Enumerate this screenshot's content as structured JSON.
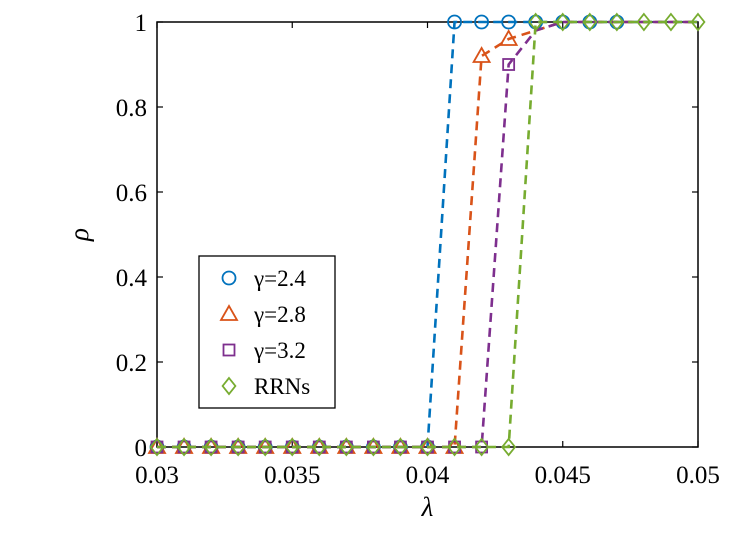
{
  "chart_data": {
    "type": "line",
    "xlabel": "λ",
    "ylabel": "ρ",
    "xlim": [
      0.03,
      0.05
    ],
    "ylim": [
      0,
      1
    ],
    "xticks": [
      "0.03",
      "0.035",
      "0.04",
      "0.045",
      "0.05"
    ],
    "yticks": [
      "0",
      "0.2",
      "0.4",
      "0.6",
      "0.8",
      "1"
    ],
    "grid": false,
    "legend_position": "lower-left",
    "x": [
      0.03,
      0.031,
      0.032,
      0.033,
      0.034,
      0.035,
      0.036,
      0.037,
      0.038,
      0.039,
      0.04,
      0.041,
      0.042,
      0.043,
      0.044,
      0.045,
      0.046,
      0.047,
      0.048,
      0.049,
      0.05
    ],
    "series": [
      {
        "name": "γ=2.4",
        "marker": "circle",
        "color": "#0072BD",
        "values": [
          0,
          0,
          0,
          0,
          0,
          0,
          0,
          0,
          0,
          0,
          0,
          1,
          1,
          1,
          1,
          1,
          1,
          1,
          1,
          1,
          1
        ],
        "marker_until": 0.047
      },
      {
        "name": "γ=2.8",
        "marker": "triangle",
        "color": "#D95319",
        "values": [
          0,
          0,
          0,
          0,
          0,
          0,
          0,
          0,
          0,
          0,
          0,
          0,
          0.92,
          0.96,
          0.98,
          1,
          1,
          1,
          1,
          1,
          1
        ],
        "marker_until": 0.043
      },
      {
        "name": "γ=3.2",
        "marker": "square",
        "color": "#7E2F8E",
        "values": [
          0,
          0,
          0,
          0,
          0,
          0,
          0,
          0,
          0,
          0,
          0,
          0,
          0,
          0.9,
          0.98,
          1,
          1,
          1,
          1,
          1,
          1
        ],
        "marker_until": 0.043
      },
      {
        "name": "RRNs",
        "marker": "diamond",
        "color": "#77AC30",
        "values": [
          0,
          0,
          0,
          0,
          0,
          0,
          0,
          0,
          0,
          0,
          0,
          0,
          0,
          0,
          1,
          1,
          1,
          1,
          1,
          1,
          1
        ],
        "marker_until": 0.05
      }
    ]
  }
}
